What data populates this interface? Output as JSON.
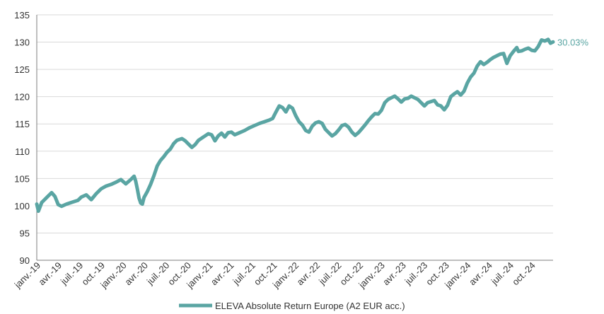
{
  "chart_data": {
    "type": "line",
    "title": "",
    "xlabel": "",
    "ylabel": "",
    "ylim": [
      90,
      135
    ],
    "yticks": [
      90,
      95,
      100,
      105,
      110,
      115,
      120,
      125,
      130,
      135
    ],
    "grid": "horizontal",
    "legend_position": "bottom",
    "line_color": "#5aa5a3",
    "xlim": [
      "2019-01-01",
      "2024-12-31"
    ],
    "x_tick_labels": [
      {
        "label": "janv.-19",
        "date": "2019-01-01"
      },
      {
        "label": "avr.-19",
        "date": "2019-04-01"
      },
      {
        "label": "juil.-19",
        "date": "2019-07-01"
      },
      {
        "label": "oct.-19",
        "date": "2019-10-01"
      },
      {
        "label": "janv.-20",
        "date": "2020-01-01"
      },
      {
        "label": "avr.-20",
        "date": "2020-04-01"
      },
      {
        "label": "juil.-20",
        "date": "2020-07-01"
      },
      {
        "label": "oct.-20",
        "date": "2020-10-01"
      },
      {
        "label": "janv.-21",
        "date": "2021-01-01"
      },
      {
        "label": "avr.-21",
        "date": "2021-04-01"
      },
      {
        "label": "juil.-21",
        "date": "2021-07-01"
      },
      {
        "label": "oct.-21",
        "date": "2021-10-01"
      },
      {
        "label": "janv.-22",
        "date": "2022-01-01"
      },
      {
        "label": "avr.-22",
        "date": "2022-04-01"
      },
      {
        "label": "juil.-22",
        "date": "2022-07-01"
      },
      {
        "label": "oct.-22",
        "date": "2022-10-01"
      },
      {
        "label": "janv.-23",
        "date": "2023-01-01"
      },
      {
        "label": "avr.-23",
        "date": "2023-04-01"
      },
      {
        "label": "juil.-23",
        "date": "2023-07-01"
      },
      {
        "label": "oct.-23",
        "date": "2023-10-01"
      },
      {
        "label": "janv.-24",
        "date": "2024-01-01"
      },
      {
        "label": "avr.-24",
        "date": "2024-04-01"
      },
      {
        "label": "juil.-24",
        "date": "2024-07-01"
      },
      {
        "label": "oct.-24",
        "date": "2024-10-01"
      }
    ],
    "end_label": "30.03%",
    "series": [
      {
        "name": "ELEVA Absolute Return Europe (A2 EUR acc.)",
        "points": [
          [
            "2019-01-01",
            100.3
          ],
          [
            "2019-01-08",
            99.0
          ],
          [
            "2019-01-22",
            100.6
          ],
          [
            "2019-02-05",
            101.2
          ],
          [
            "2019-02-19",
            101.8
          ],
          [
            "2019-03-05",
            102.4
          ],
          [
            "2019-03-19",
            101.7
          ],
          [
            "2019-04-02",
            100.2
          ],
          [
            "2019-04-16",
            99.9
          ],
          [
            "2019-05-07",
            100.3
          ],
          [
            "2019-06-04",
            100.7
          ],
          [
            "2019-06-25",
            101.0
          ],
          [
            "2019-07-09",
            101.6
          ],
          [
            "2019-07-30",
            102.0
          ],
          [
            "2019-08-20",
            101.1
          ],
          [
            "2019-09-10",
            102.2
          ],
          [
            "2019-10-01",
            103.1
          ],
          [
            "2019-10-22",
            103.6
          ],
          [
            "2019-11-12",
            103.9
          ],
          [
            "2019-12-03",
            104.3
          ],
          [
            "2019-12-24",
            104.8
          ],
          [
            "2020-01-14",
            104.0
          ],
          [
            "2020-02-04",
            104.8
          ],
          [
            "2020-02-18",
            105.4
          ],
          [
            "2020-02-25",
            104.5
          ],
          [
            "2020-03-03",
            103.0
          ],
          [
            "2020-03-10",
            101.4
          ],
          [
            "2020-03-17",
            100.5
          ],
          [
            "2020-03-24",
            100.3
          ],
          [
            "2020-03-31",
            101.5
          ],
          [
            "2020-04-14",
            102.6
          ],
          [
            "2020-04-28",
            103.9
          ],
          [
            "2020-05-12",
            105.5
          ],
          [
            "2020-05-26",
            107.3
          ],
          [
            "2020-06-09",
            108.3
          ],
          [
            "2020-06-23",
            109.0
          ],
          [
            "2020-07-07",
            109.8
          ],
          [
            "2020-07-21",
            110.4
          ],
          [
            "2020-08-04",
            111.4
          ],
          [
            "2020-08-18",
            112.0
          ],
          [
            "2020-09-08",
            112.3
          ],
          [
            "2020-09-22",
            111.9
          ],
          [
            "2020-10-06",
            111.3
          ],
          [
            "2020-10-20",
            110.7
          ],
          [
            "2020-11-03",
            111.2
          ],
          [
            "2020-11-17",
            112.0
          ],
          [
            "2020-12-01",
            112.4
          ],
          [
            "2020-12-15",
            112.8
          ],
          [
            "2020-12-29",
            113.2
          ],
          [
            "2021-01-12",
            113.0
          ],
          [
            "2021-01-26",
            111.9
          ],
          [
            "2021-02-09",
            112.8
          ],
          [
            "2021-02-23",
            113.3
          ],
          [
            "2021-03-09",
            112.6
          ],
          [
            "2021-03-23",
            113.4
          ],
          [
            "2021-04-06",
            113.5
          ],
          [
            "2021-04-20",
            113.0
          ],
          [
            "2021-05-11",
            113.4
          ],
          [
            "2021-06-01",
            113.8
          ],
          [
            "2021-06-22",
            114.3
          ],
          [
            "2021-07-13",
            114.7
          ],
          [
            "2021-08-03",
            115.1
          ],
          [
            "2021-08-24",
            115.4
          ],
          [
            "2021-09-14",
            115.7
          ],
          [
            "2021-09-28",
            116.0
          ],
          [
            "2021-10-12",
            117.2
          ],
          [
            "2021-10-26",
            118.3
          ],
          [
            "2021-11-09",
            118.0
          ],
          [
            "2021-11-23",
            117.2
          ],
          [
            "2021-12-07",
            118.3
          ],
          [
            "2021-12-21",
            117.9
          ],
          [
            "2022-01-04",
            116.5
          ],
          [
            "2022-01-18",
            115.4
          ],
          [
            "2022-02-01",
            114.8
          ],
          [
            "2022-02-15",
            113.8
          ],
          [
            "2022-03-01",
            113.5
          ],
          [
            "2022-03-15",
            114.6
          ],
          [
            "2022-03-29",
            115.2
          ],
          [
            "2022-04-12",
            115.4
          ],
          [
            "2022-04-26",
            115.1
          ],
          [
            "2022-05-10",
            114.0
          ],
          [
            "2022-05-24",
            113.4
          ],
          [
            "2022-06-07",
            112.8
          ],
          [
            "2022-06-21",
            113.2
          ],
          [
            "2022-07-05",
            113.9
          ],
          [
            "2022-07-19",
            114.7
          ],
          [
            "2022-08-02",
            114.9
          ],
          [
            "2022-08-16",
            114.4
          ],
          [
            "2022-08-30",
            113.5
          ],
          [
            "2022-09-13",
            112.9
          ],
          [
            "2022-09-27",
            113.4
          ],
          [
            "2022-10-11",
            114.1
          ],
          [
            "2022-10-25",
            114.8
          ],
          [
            "2022-11-08",
            115.6
          ],
          [
            "2022-11-22",
            116.3
          ],
          [
            "2022-12-06",
            116.9
          ],
          [
            "2022-12-20",
            116.8
          ],
          [
            "2023-01-03",
            117.5
          ],
          [
            "2023-01-17",
            118.9
          ],
          [
            "2023-01-31",
            119.5
          ],
          [
            "2023-02-14",
            119.8
          ],
          [
            "2023-02-28",
            120.1
          ],
          [
            "2023-03-14",
            119.6
          ],
          [
            "2023-03-28",
            119.0
          ],
          [
            "2023-04-11",
            119.6
          ],
          [
            "2023-04-25",
            119.7
          ],
          [
            "2023-05-09",
            120.1
          ],
          [
            "2023-05-23",
            119.8
          ],
          [
            "2023-06-06",
            119.5
          ],
          [
            "2023-06-20",
            118.9
          ],
          [
            "2023-07-04",
            118.3
          ],
          [
            "2023-07-18",
            118.9
          ],
          [
            "2023-08-01",
            119.1
          ],
          [
            "2023-08-15",
            119.3
          ],
          [
            "2023-08-29",
            118.5
          ],
          [
            "2023-09-12",
            118.3
          ],
          [
            "2023-09-26",
            117.6
          ],
          [
            "2023-10-10",
            118.4
          ],
          [
            "2023-10-24",
            120.0
          ],
          [
            "2023-11-07",
            120.5
          ],
          [
            "2023-11-21",
            120.9
          ],
          [
            "2023-12-05",
            120.3
          ],
          [
            "2023-12-19",
            121.0
          ],
          [
            "2024-01-02",
            122.5
          ],
          [
            "2024-01-16",
            123.6
          ],
          [
            "2024-01-30",
            124.3
          ],
          [
            "2024-02-13",
            125.6
          ],
          [
            "2024-02-27",
            126.4
          ],
          [
            "2024-03-12",
            125.9
          ],
          [
            "2024-03-26",
            126.3
          ],
          [
            "2024-04-09",
            126.8
          ],
          [
            "2024-04-23",
            127.2
          ],
          [
            "2024-05-07",
            127.5
          ],
          [
            "2024-05-21",
            127.8
          ],
          [
            "2024-06-04",
            127.9
          ],
          [
            "2024-06-18",
            126.1
          ],
          [
            "2024-07-02",
            127.5
          ],
          [
            "2024-07-16",
            128.3
          ],
          [
            "2024-07-30",
            129.0
          ],
          [
            "2024-08-06",
            128.3
          ],
          [
            "2024-08-20",
            128.4
          ],
          [
            "2024-09-03",
            128.7
          ],
          [
            "2024-09-17",
            128.9
          ],
          [
            "2024-10-01",
            128.5
          ],
          [
            "2024-10-15",
            128.4
          ],
          [
            "2024-10-29",
            129.2
          ],
          [
            "2024-11-12",
            130.4
          ],
          [
            "2024-11-26",
            130.2
          ],
          [
            "2024-12-10",
            130.5
          ],
          [
            "2024-12-20",
            129.8
          ],
          [
            "2024-12-31",
            130.03
          ]
        ]
      }
    ]
  }
}
